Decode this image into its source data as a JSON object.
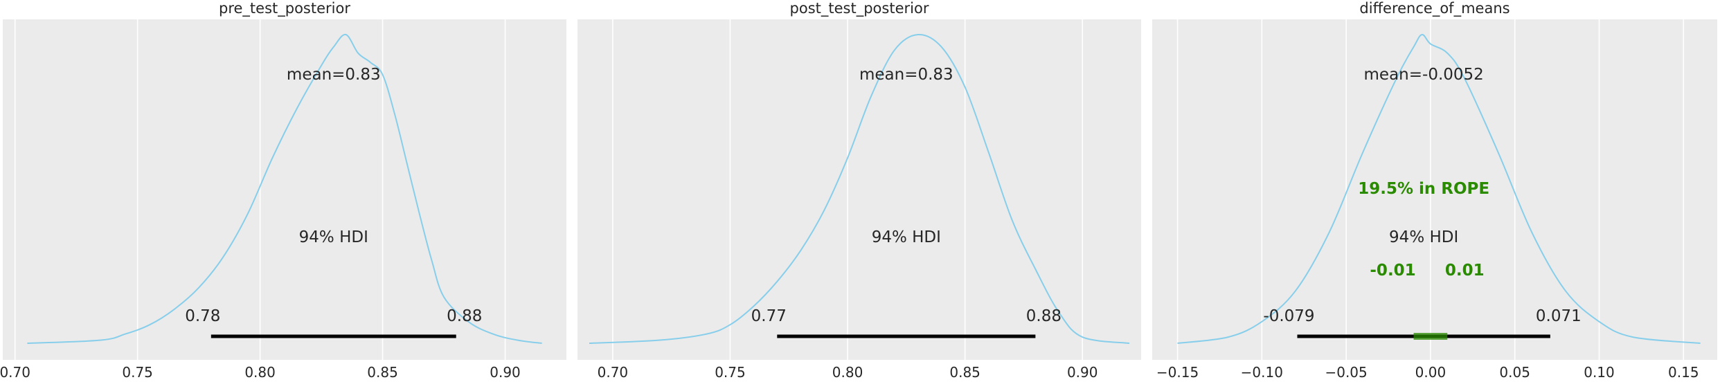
{
  "chart_data": [
    {
      "type": "area",
      "title": "pre_test_posterior",
      "xlim": [
        0.695,
        0.925
      ],
      "xticks": [
        0.7,
        0.75,
        0.8,
        0.85,
        0.9
      ],
      "xtick_labels": [
        "0.70",
        "0.75",
        "0.80",
        "0.85",
        "0.90"
      ],
      "mean_label": "mean=0.83",
      "hdi_label": "94% HDI",
      "hdi": [
        0.78,
        0.88
      ],
      "hdi_labels": [
        "0.78",
        "0.88"
      ],
      "density": {
        "x": [
          0.705,
          0.735,
          0.745,
          0.755,
          0.765,
          0.775,
          0.785,
          0.795,
          0.805,
          0.815,
          0.825,
          0.83,
          0.835,
          0.84,
          0.845,
          0.85,
          0.855,
          0.86,
          0.865,
          0.87,
          0.875,
          0.885,
          0.895,
          0.905,
          0.915
        ],
        "y": [
          0.0,
          0.01,
          0.03,
          0.06,
          0.11,
          0.18,
          0.28,
          0.42,
          0.6,
          0.76,
          0.9,
          0.96,
          1.0,
          0.94,
          0.91,
          0.87,
          0.74,
          0.58,
          0.42,
          0.27,
          0.15,
          0.07,
          0.03,
          0.01,
          0.0
        ]
      }
    },
    {
      "type": "area",
      "title": "post_test_posterior",
      "xlim": [
        0.685,
        0.925
      ],
      "xticks": [
        0.7,
        0.75,
        0.8,
        0.85,
        0.9
      ],
      "xtick_labels": [
        "0.70",
        "0.75",
        "0.80",
        "0.85",
        "0.90"
      ],
      "mean_label": "mean=0.83",
      "hdi_label": "94% HDI",
      "hdi": [
        0.77,
        0.88
      ],
      "hdi_labels": [
        "0.77",
        "0.88"
      ],
      "density": {
        "x": [
          0.69,
          0.72,
          0.74,
          0.75,
          0.76,
          0.77,
          0.78,
          0.79,
          0.8,
          0.81,
          0.82,
          0.83,
          0.84,
          0.85,
          0.86,
          0.87,
          0.88,
          0.89,
          0.9,
          0.92
        ],
        "y": [
          0.0,
          0.01,
          0.03,
          0.06,
          0.12,
          0.2,
          0.3,
          0.43,
          0.6,
          0.8,
          0.95,
          1.0,
          0.96,
          0.83,
          0.62,
          0.4,
          0.24,
          0.1,
          0.02,
          0.0
        ]
      }
    },
    {
      "type": "area",
      "title": "difference_of_means",
      "xlim": [
        -0.165,
        0.17
      ],
      "xticks": [
        -0.15,
        -0.1,
        -0.05,
        0.0,
        0.05,
        0.1,
        0.15
      ],
      "xtick_labels": [
        "−0.15",
        "−0.10",
        "−0.05",
        "0.00",
        "0.05",
        "0.10",
        "0.15"
      ],
      "mean_label": "mean=-0.0052",
      "hdi_label": "94% HDI",
      "hdi": [
        -0.079,
        0.071
      ],
      "hdi_labels": [
        "-0.079",
        "0.071"
      ],
      "rope": [
        -0.01,
        0.01
      ],
      "rope_labels": [
        "-0.01",
        "0.01"
      ],
      "rope_text": "19.5% in ROPE",
      "density": {
        "x": [
          -0.15,
          -0.12,
          -0.1,
          -0.08,
          -0.06,
          -0.04,
          -0.02,
          -0.01,
          -0.005,
          0.0,
          0.01,
          0.02,
          0.04,
          0.06,
          0.08,
          0.1,
          0.12,
          0.16
        ],
        "y": [
          0.0,
          0.02,
          0.07,
          0.17,
          0.36,
          0.62,
          0.86,
          0.96,
          1.0,
          0.97,
          0.94,
          0.86,
          0.62,
          0.36,
          0.17,
          0.07,
          0.02,
          0.0
        ]
      }
    }
  ],
  "colors": {
    "curve": "#87ceeb",
    "panel_bg": "#ebebeb",
    "grid": "#ffffff",
    "hdi_bar": "#000000",
    "rope_fill": "#2a8a00",
    "rope_text": "#2a8a00"
  }
}
